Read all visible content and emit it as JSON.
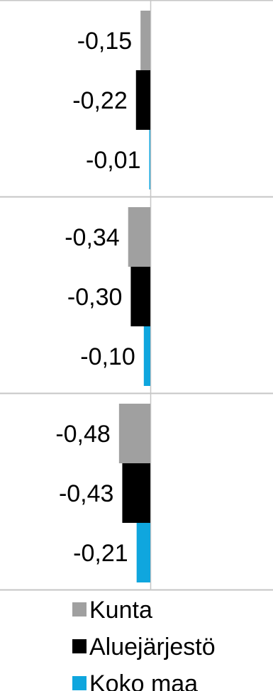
{
  "chart_data": {
    "type": "bar",
    "orientation": "horizontal",
    "categories": [
      "",
      "",
      ""
    ],
    "series": [
      {
        "name": "Kunta",
        "values": [
          -0.15,
          -0.34,
          -0.48
        ],
        "labels": [
          "-0,15",
          "-0,34",
          "-0,48"
        ]
      },
      {
        "name": "Aluejärjestö",
        "values": [
          -0.22,
          -0.3,
          -0.43
        ],
        "labels": [
          "-0,22",
          "-0,30",
          "-0,43"
        ]
      },
      {
        "name": "Koko maa",
        "values": [
          -0.01,
          -0.1,
          -0.21
        ],
        "labels": [
          "-0,01",
          "-0,10",
          "-0,21"
        ]
      }
    ],
    "colors": {
      "Kunta": "#a0a0a0",
      "Aluejärjestö": "#000000",
      "Koko maa": "#0fa6de"
    },
    "grid": true,
    "legend": "bottom",
    "title": "",
    "xlabel": "",
    "ylabel": ""
  }
}
